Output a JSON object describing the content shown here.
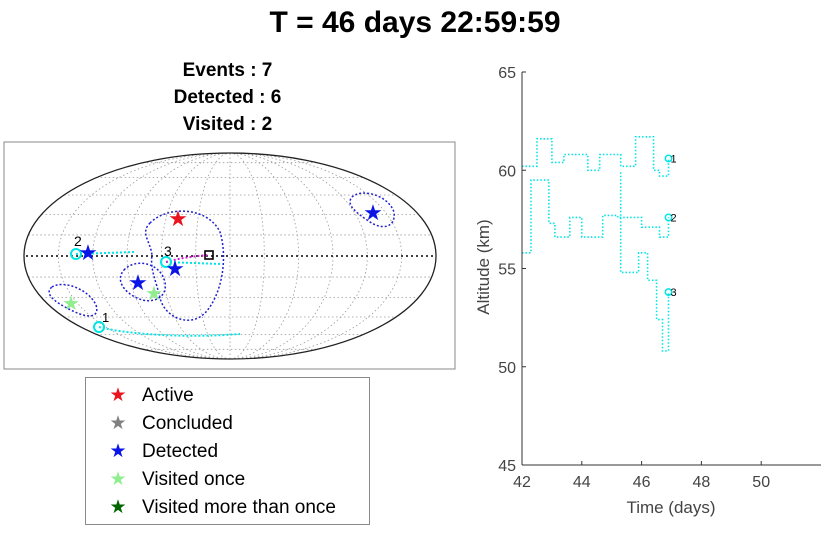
{
  "title": "T = 46 days 22:59:59",
  "stats": {
    "events": "Events : 7",
    "detected": "Detected : 6",
    "visited": "Visited : 2"
  },
  "colors": {
    "active": "#e8141e",
    "concluded": "#808080",
    "detected": "#0a14e6",
    "visited_once": "#90ee90",
    "visited_more": "#006400",
    "track": "#00e5e5",
    "region": "#2020d0",
    "path": "#d020d0"
  },
  "legend": [
    {
      "key": "active",
      "label": "Active",
      "color": "#e8141e"
    },
    {
      "key": "concluded",
      "label": "Concluded",
      "color": "#808080"
    },
    {
      "key": "detected",
      "label": "Detected",
      "color": "#0a14e6"
    },
    {
      "key": "visited_once",
      "label": "Visited once",
      "color": "#90ee90"
    },
    {
      "key": "visited_more",
      "label": "Visited more than once",
      "color": "#006400"
    }
  ],
  "map": {
    "track_labels": [
      "1",
      "2",
      "3"
    ]
  },
  "chart_data": {
    "type": "line",
    "xlabel": "Time (days)",
    "ylabel": "Altitude (km)",
    "xlim": [
      42,
      52
    ],
    "ylim": [
      45,
      65
    ],
    "xticks": [
      42,
      44,
      46,
      48,
      50
    ],
    "yticks": [
      45,
      50,
      55,
      60,
      65
    ],
    "grid": false,
    "series": [
      {
        "name": "1",
        "x": [
          42.0,
          42.5,
          42.5,
          43.0,
          43.0,
          43.4,
          43.4,
          44.2,
          44.2,
          44.6,
          44.6,
          45.3,
          45.3,
          45.8,
          45.8,
          46.4,
          46.4,
          46.6,
          46.6,
          46.9,
          46.9
        ],
        "y": [
          60.2,
          60.2,
          61.6,
          61.6,
          60.4,
          60.4,
          60.8,
          60.8,
          60.0,
          60.0,
          60.8,
          60.8,
          60.2,
          60.2,
          61.7,
          61.7,
          60.0,
          60.0,
          59.7,
          59.7,
          60.6
        ]
      },
      {
        "name": "2",
        "x": [
          42.0,
          42.3,
          42.3,
          42.9,
          42.9,
          43.1,
          43.1,
          43.6,
          43.6,
          44.0,
          44.0,
          44.7,
          44.7,
          45.2,
          45.2,
          46.0,
          46.0,
          46.6,
          46.6,
          46.9,
          46.9
        ],
        "y": [
          55.8,
          55.8,
          59.5,
          59.5,
          57.3,
          57.3,
          56.6,
          56.6,
          57.6,
          57.6,
          56.6,
          56.6,
          57.7,
          57.7,
          57.6,
          57.6,
          57.1,
          57.1,
          56.6,
          56.6,
          57.6
        ]
      },
      {
        "name": "3",
        "x": [
          45.3,
          45.3,
          45.9,
          45.9,
          46.2,
          46.2,
          46.5,
          46.5,
          46.7,
          46.7,
          46.9,
          46.9
        ],
        "y": [
          59.9,
          54.8,
          54.8,
          55.8,
          55.8,
          54.4,
          54.4,
          52.4,
          52.4,
          50.8,
          50.8,
          53.8
        ]
      }
    ]
  }
}
